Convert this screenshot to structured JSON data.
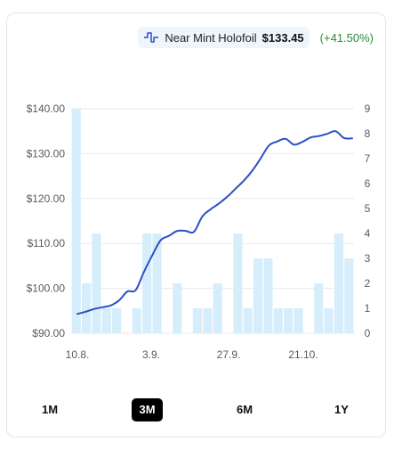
{
  "legend": {
    "series_name": "Near Mint Holofoil",
    "price": "$133.45",
    "change": "(+41.50%)",
    "icon": "line-chart-icon"
  },
  "ranges": [
    {
      "label": "1M",
      "active": false
    },
    {
      "label": "3M",
      "active": true
    },
    {
      "label": "6M",
      "active": false
    },
    {
      "label": "1Y",
      "active": false
    }
  ],
  "colors": {
    "line": "#2c4fc7",
    "bar": "#d6eefc",
    "grid": "#e8eaed",
    "change": "#2f8a3d"
  },
  "chart_data": {
    "type": "line",
    "x_tick_labels": [
      "10.8.",
      "3.9.",
      "27.9.",
      "21.10."
    ],
    "y_left": {
      "range": [
        90,
        140
      ],
      "ticks": [
        "$90.00",
        "$100.00",
        "$110.00",
        "$120.00",
        "$130.00",
        "$140.00"
      ]
    },
    "y_right": {
      "range": [
        0,
        9
      ],
      "ticks": [
        "0",
        "1",
        "2",
        "3",
        "4",
        "5",
        "6",
        "7",
        "8",
        "9"
      ]
    },
    "grid": "horizontal",
    "series": [
      {
        "type": "line",
        "axis": "left",
        "values": [
          94.3,
          94.8,
          95.4,
          95.8,
          96.2,
          97.3,
          99.3,
          99.6,
          103.7,
          107.4,
          110.7,
          111.7,
          112.8,
          112.8,
          112.6,
          116.0,
          117.6,
          118.9,
          120.4,
          122.2,
          124.0,
          126.2,
          128.9,
          131.8,
          132.7,
          133.3,
          132.0,
          132.6,
          133.6,
          133.9,
          134.4,
          135.0,
          133.5,
          133.4
        ]
      },
      {
        "type": "bar",
        "axis": "right",
        "values": [
          9,
          2,
          4,
          1,
          1,
          0,
          1,
          4,
          4,
          0,
          2,
          0,
          1,
          1,
          2,
          0,
          4,
          1,
          3,
          3,
          1,
          1,
          1,
          0,
          2,
          1,
          4,
          3
        ]
      }
    ]
  }
}
